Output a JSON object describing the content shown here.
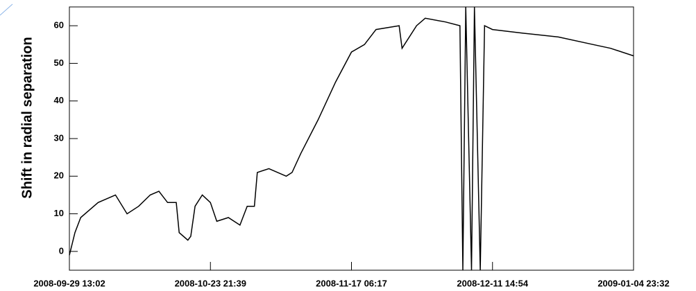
{
  "chart_data": {
    "type": "line",
    "ylabel": "Shift in radial separation",
    "xlim": [
      "2008-09-29 13:02",
      "2009-01-04 23:32"
    ],
    "xticks": [
      "2008-09-29 13:02",
      "2008-10-23 21:39",
      "2008-11-17 06:17",
      "2008-12-11 14:54",
      "2009-01-04 23:32"
    ],
    "ylim": [
      -5,
      65
    ],
    "yticks": [
      0,
      10,
      20,
      30,
      40,
      50,
      60
    ],
    "series": [
      {
        "color": "#000000",
        "x": [
          "2008-09-29 13:02",
          "2008-09-30 12:00",
          "2008-10-01 12:00",
          "2008-10-04 12:00",
          "2008-10-07 12:00",
          "2008-10-09 12:00",
          "2008-10-11 12:00",
          "2008-10-13 12:00",
          "2008-10-15 00:00",
          "2008-10-16 12:00",
          "2008-10-18 00:00",
          "2008-10-18 12:00",
          "2008-10-20 00:00",
          "2008-10-20 12:00",
          "2008-10-21 06:00",
          "2008-10-22 12:00",
          "2008-10-23 21:39",
          "2008-10-25 00:00",
          "2008-10-27 00:00",
          "2008-10-29 00:00",
          "2008-10-30 06:00",
          "2008-10-31 12:00",
          "2008-11-01 00:00",
          "2008-11-03 00:00",
          "2008-11-06 00:00",
          "2008-11-07 00:00",
          "2008-11-08 12:00",
          "2008-11-11 12:00",
          "2008-11-14 12:00",
          "2008-11-17 06:17",
          "2008-11-19 12:00",
          "2008-11-21 12:00",
          "2008-11-25 12:00",
          "2008-11-26 00:00",
          "2008-11-28 12:00",
          "2008-11-30 00:00",
          "2008-12-03 12:00",
          "2008-12-06 00:00",
          "2008-12-06 12:00",
          "2008-12-07 00:00",
          "2008-12-08 00:00",
          "2008-12-08 12:00",
          "2008-12-09 12:00",
          "2008-12-10 06:00",
          "2008-12-11 14:54",
          "2008-12-17 00:00",
          "2008-12-23 00:00",
          "2008-12-29 00:00",
          "2009-01-01 00:00",
          "2009-01-04 23:32"
        ],
        "values": [
          -1,
          5,
          9,
          13,
          15,
          10,
          12,
          15,
          16,
          13,
          13,
          5,
          3,
          4,
          12,
          15,
          13,
          8,
          9,
          7,
          12,
          12,
          21,
          22,
          20,
          21,
          26,
          35,
          45,
          53,
          55,
          59,
          60,
          54,
          60,
          62,
          61,
          60,
          -5,
          65,
          -5,
          65,
          -5,
          60,
          59,
          58,
          57,
          55,
          54,
          52
        ]
      }
    ]
  }
}
